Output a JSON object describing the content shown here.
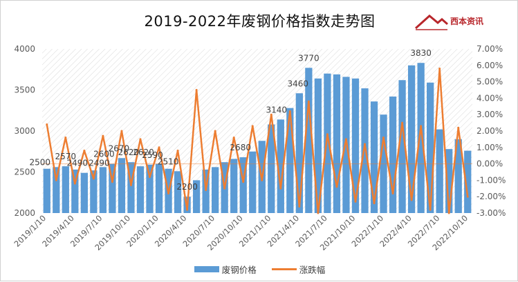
{
  "colors": {
    "bar": "#5b9bd5",
    "line": "#ed7d31",
    "text": "#595959",
    "logo": "#b8262b"
  },
  "logo": {
    "name": "西本资讯",
    "icon": "logo-icon"
  },
  "chart_data": {
    "type": "bar+line",
    "title": "2019-2022年废钢价格指数走势图",
    "left_axis": {
      "ylim": [
        2000,
        4000
      ],
      "ticks": [
        "2000",
        "2500",
        "3000",
        "3500",
        "4000"
      ]
    },
    "right_axis": {
      "ylim": [
        -3.0,
        7.0
      ],
      "ticks": [
        "-3.00%",
        "-2.00%",
        "-1.00%",
        "0.00%",
        "1.00%",
        "2.00%",
        "3.00%",
        "4.00%",
        "5.00%",
        "6.00%",
        "7.00%"
      ]
    },
    "x_ticks": [
      "2019/1/10",
      "2019/4/10",
      "2019/7/10",
      "2019/10/10",
      "2020/1/10",
      "2020/4/10",
      "2020/7/10",
      "2020/10/10",
      "2021/1/10",
      "2021/4/10",
      "2021/7/10",
      "2021/10/10",
      "2022/1/10",
      "2022/4/10",
      "2022/7/10",
      "2022/10/10"
    ],
    "grid": false,
    "legend_position": "bottom",
    "series": [
      {
        "name": "废钢价格",
        "type": "bar",
        "axis": "left",
        "x": [
          "2019/1/10",
          "2019/2/10",
          "2019/3/10",
          "2019/4/10",
          "2019/5/10",
          "2019/6/10",
          "2019/7/10",
          "2019/8/10",
          "2019/9/10",
          "2019/10/10",
          "2019/11/10",
          "2019/12/10",
          "2020/1/10",
          "2020/2/10",
          "2020/3/10",
          "2020/4/10",
          "2020/5/10",
          "2020/6/10",
          "2020/7/10",
          "2020/8/10",
          "2020/9/10",
          "2020/10/10",
          "2020/11/10",
          "2020/12/10",
          "2021/1/10",
          "2021/2/10",
          "2021/3/10",
          "2021/4/10",
          "2021/5/10",
          "2021/6/10",
          "2021/7/10",
          "2021/8/10",
          "2021/9/10",
          "2021/10/10",
          "2021/11/10",
          "2021/12/10",
          "2022/1/10",
          "2022/2/10",
          "2022/3/10",
          "2022/4/10",
          "2022/5/10",
          "2022/6/10",
          "2022/7/10",
          "2022/8/10",
          "2022/9/10",
          "2022/10/10"
        ],
        "values": [
          2540,
          2560,
          2570,
          2530,
          2490,
          2520,
          2560,
          2600,
          2670,
          2620,
          2570,
          2590,
          2600,
          2540,
          2510,
          2200,
          2400,
          2530,
          2560,
          2620,
          2660,
          2680,
          2750,
          2880,
          3080,
          3140,
          3280,
          3460,
          3770,
          3640,
          3700,
          3690,
          3660,
          3640,
          3520,
          3360,
          3200,
          3420,
          3620,
          3800,
          3830,
          3590,
          3020,
          2780,
          2900,
          2760
        ]
      },
      {
        "name": "涨跌幅",
        "type": "line",
        "axis": "right",
        "x": [
          "2019/1/10",
          "2019/2/10",
          "2019/3/10",
          "2019/4/10",
          "2019/5/10",
          "2019/6/10",
          "2019/7/10",
          "2019/8/10",
          "2019/9/10",
          "2019/10/10",
          "2019/11/10",
          "2019/12/10",
          "2020/1/10",
          "2020/2/10",
          "2020/3/10",
          "2020/4/10",
          "2020/5/10",
          "2020/6/10",
          "2020/7/10",
          "2020/8/10",
          "2020/9/10",
          "2020/10/10",
          "2020/11/10",
          "2020/12/10",
          "2021/1/10",
          "2021/2/10",
          "2021/3/10",
          "2021/4/10",
          "2021/5/10",
          "2021/6/10",
          "2021/7/10",
          "2021/8/10",
          "2021/9/10",
          "2021/10/10",
          "2021/11/10",
          "2021/12/10",
          "2022/1/10",
          "2022/2/10",
          "2022/3/10",
          "2022/4/10",
          "2022/5/10",
          "2022/6/10",
          "2022/7/10",
          "2022/8/10",
          "2022/9/10",
          "2022/10/10"
        ],
        "values": [
          2.4,
          -1.0,
          1.6,
          -1.2,
          0.8,
          -0.9,
          1.7,
          -1.1,
          2.0,
          -1.3,
          1.5,
          -0.8,
          1.0,
          -1.8,
          0.8,
          -2.8,
          4.5,
          -1.6,
          2.0,
          -1.5,
          1.6,
          -1.1,
          2.3,
          -1.0,
          3.0,
          -1.5,
          3.2,
          -2.6,
          3.8,
          -3.0,
          1.8,
          -1.4,
          1.5,
          -2.3,
          1.2,
          -2.4,
          1.6,
          -1.8,
          2.5,
          -2.2,
          2.3,
          -2.8,
          5.8,
          -3.0,
          2.2,
          -2.0
        ]
      }
    ],
    "annotations": [
      "2500",
      "2570",
      "2490",
      "2490",
      "2600",
      "2670",
      "2620",
      "2620",
      "2590",
      "2510",
      "2200",
      "2680",
      "3140",
      "3460",
      "3770",
      "3830"
    ]
  }
}
